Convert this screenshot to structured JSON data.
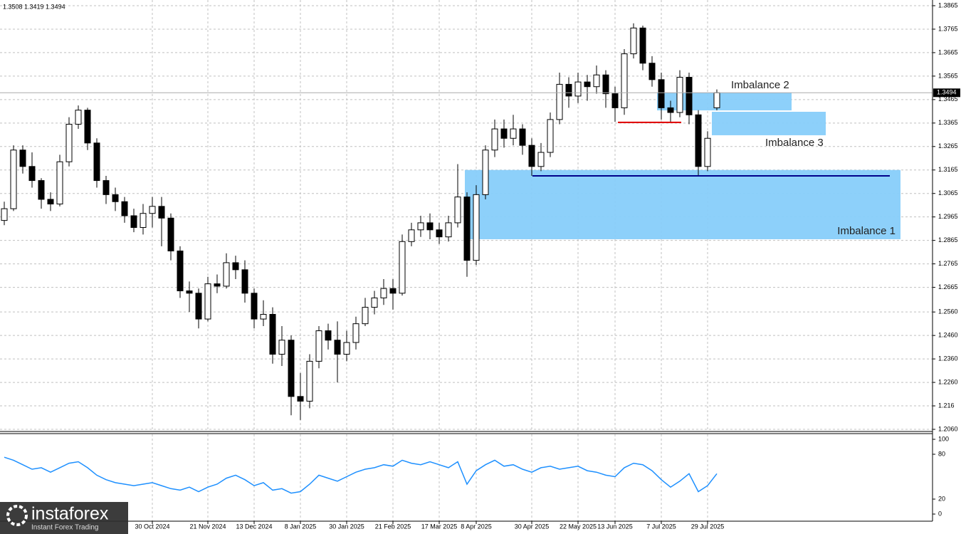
{
  "chart_data": [
    {
      "type": "candlestick",
      "header": "1.3508 1.3419 1.3494",
      "categories": [
        null,
        null,
        null,
        null,
        null,
        null,
        null,
        null,
        null,
        null,
        null,
        null,
        null,
        null,
        null,
        null,
        "30 Oct 2024",
        null,
        null,
        null,
        null,
        null,
        "21 Nov 2024",
        null,
        null,
        null,
        null,
        "13 Dec 2024",
        null,
        null,
        null,
        null,
        "8 Jan 2025",
        null,
        null,
        null,
        null,
        "30 Jan 2025",
        null,
        null,
        null,
        null,
        "21 Feb 2025",
        null,
        null,
        null,
        null,
        "17 Mar 2025",
        null,
        null,
        null,
        "8 Apr 2025",
        null,
        null,
        null,
        null,
        null,
        "30 Apr 2025",
        null,
        null,
        null,
        null,
        "22 May 2025",
        null,
        null,
        null,
        "13 Jun 2025",
        null,
        null,
        null,
        null,
        "7 Jul 2025",
        null,
        null,
        null,
        null,
        "29 Jul 2025",
        null
      ],
      "open": [
        1.295,
        1.3,
        1.325,
        1.318,
        1.312,
        1.304,
        1.302,
        1.32,
        1.336,
        1.342,
        1.328,
        1.312,
        1.306,
        1.303,
        1.297,
        1.292,
        1.298,
        1.301,
        1.296,
        1.282,
        1.265,
        1.264,
        1.253,
        1.268,
        1.267,
        1.277,
        1.274,
        1.264,
        1.253,
        1.255,
        1.238,
        1.244,
        1.22,
        1.218,
        1.235,
        1.248,
        1.244,
        1.238,
        1.243,
        1.251,
        1.258,
        1.262,
        1.266,
        1.264,
        1.286,
        1.291,
        1.294,
        1.291,
        1.288,
        1.294,
        1.305,
        1.278,
        1.306,
        1.325,
        1.334,
        1.33,
        1.334,
        1.327,
        1.318,
        1.324,
        1.338,
        1.353,
        1.348,
        1.354,
        1.352,
        1.357,
        1.349,
        1.343,
        1.366,
        1.377,
        1.362,
        1.355,
        1.343,
        1.341,
        1.356,
        1.34,
        1.318,
        1.343
      ],
      "high": [
        1.303,
        1.327,
        1.327,
        1.324,
        1.313,
        1.307,
        1.323,
        1.339,
        1.344,
        1.343,
        1.33,
        1.314,
        1.309,
        1.305,
        1.3,
        1.302,
        1.305,
        1.305,
        1.298,
        1.284,
        1.269,
        1.266,
        1.271,
        1.272,
        1.281,
        1.28,
        1.278,
        1.266,
        1.261,
        1.258,
        1.25,
        1.246,
        1.23,
        1.238,
        1.25,
        1.251,
        1.252,
        1.248,
        1.254,
        1.262,
        1.265,
        1.27,
        1.27,
        1.289,
        1.294,
        1.297,
        1.298,
        1.294,
        1.297,
        1.319,
        1.307,
        1.31,
        1.327,
        1.338,
        1.338,
        1.34,
        1.336,
        1.33,
        1.328,
        1.341,
        1.358,
        1.356,
        1.358,
        1.357,
        1.361,
        1.359,
        1.352,
        1.368,
        1.379,
        1.378,
        1.365,
        1.358,
        1.346,
        1.359,
        1.358,
        1.342,
        1.333,
        1.3508
      ],
      "low": [
        1.293,
        1.299,
        1.315,
        1.309,
        1.3,
        1.299,
        1.301,
        1.318,
        1.334,
        1.325,
        1.309,
        1.302,
        1.299,
        1.294,
        1.29,
        1.289,
        1.292,
        1.284,
        1.278,
        1.262,
        1.256,
        1.249,
        1.252,
        1.264,
        1.266,
        1.27,
        1.26,
        1.249,
        1.25,
        1.234,
        1.233,
        1.212,
        1.21,
        1.215,
        1.232,
        1.24,
        1.226,
        1.235,
        1.24,
        1.25,
        1.255,
        1.259,
        1.257,
        1.263,
        1.284,
        1.288,
        1.287,
        1.285,
        1.286,
        1.292,
        1.271,
        1.276,
        1.304,
        1.322,
        1.326,
        1.327,
        1.323,
        1.314,
        1.316,
        1.322,
        1.336,
        1.343,
        1.345,
        1.346,
        1.349,
        1.343,
        1.337,
        1.34,
        1.364,
        1.359,
        1.352,
        1.338,
        1.337,
        1.339,
        1.336,
        1.314,
        1.316,
        1.3419
      ],
      "close": [
        1.3,
        1.325,
        1.318,
        1.312,
        1.304,
        1.302,
        1.32,
        1.336,
        1.342,
        1.328,
        1.312,
        1.306,
        1.303,
        1.297,
        1.292,
        1.298,
        1.301,
        1.296,
        1.282,
        1.265,
        1.264,
        1.253,
        1.268,
        1.267,
        1.277,
        1.274,
        1.264,
        1.253,
        1.255,
        1.238,
        1.244,
        1.22,
        1.218,
        1.235,
        1.248,
        1.244,
        1.238,
        1.243,
        1.251,
        1.258,
        1.262,
        1.266,
        1.264,
        1.286,
        1.291,
        1.294,
        1.291,
        1.288,
        1.294,
        1.305,
        1.278,
        1.306,
        1.325,
        1.334,
        1.33,
        1.334,
        1.327,
        1.318,
        1.324,
        1.338,
        1.353,
        1.348,
        1.354,
        1.352,
        1.357,
        1.349,
        1.343,
        1.366,
        1.377,
        1.362,
        1.355,
        1.343,
        1.341,
        1.356,
        1.34,
        1.318,
        1.33,
        1.3494
      ],
      "last_price": 1.3494,
      "ylim": [
        1.206,
        1.3865
      ],
      "yticks": [
        {
          "value": 1.206,
          "label": "1.2060"
        },
        1.216,
        {
          "value": 1.226,
          "label": "1.2260"
        },
        {
          "value": 1.236,
          "label": "1.2360"
        },
        {
          "value": 1.246,
          "label": "1.2460"
        },
        {
          "value": 1.256,
          "label": "1.2560"
        },
        1.2665,
        1.2765,
        1.2865,
        1.2965,
        1.3065,
        1.3165,
        1.3265,
        1.3365,
        1.3465,
        1.3565,
        1.3665,
        1.3765,
        1.3865
      ],
      "grid": true,
      "zones": [
        {
          "label": "Imbalance 1",
          "top": 1.3165,
          "bottom": 1.287,
          "color": "#87cefa"
        },
        {
          "label": "Imbalance 2",
          "top": 1.3495,
          "bottom": 1.3419,
          "color": "#87cefa"
        },
        {
          "label": "Imbalance 3",
          "top": 1.3413,
          "bottom": 1.3313,
          "color": "#87cefa"
        }
      ],
      "levels": [
        {
          "value": 1.314,
          "color": "#00008b"
        },
        {
          "value": 1.3368,
          "color": "#e00000"
        }
      ]
    },
    {
      "type": "line",
      "color": "#1e90ff",
      "values": [
        76,
        72,
        66,
        60,
        62,
        56,
        62,
        68,
        70,
        62,
        52,
        46,
        42,
        40,
        38,
        40,
        42,
        38,
        34,
        32,
        36,
        30,
        36,
        40,
        48,
        52,
        46,
        38,
        42,
        32,
        34,
        28,
        30,
        40,
        52,
        48,
        44,
        50,
        56,
        60,
        62,
        66,
        64,
        72,
        68,
        66,
        70,
        66,
        62,
        70,
        40,
        58,
        66,
        72,
        64,
        66,
        60,
        56,
        62,
        64,
        60,
        62,
        64,
        58,
        56,
        52,
        50,
        62,
        68,
        66,
        58,
        46,
        36,
        44,
        54,
        30,
        38,
        54
      ],
      "ylim": [
        0,
        100
      ],
      "yticks": [
        0,
        20,
        80,
        100
      ]
    }
  ],
  "logo": {
    "name": "instaforex",
    "tagline": "Instant Forex Trading"
  }
}
